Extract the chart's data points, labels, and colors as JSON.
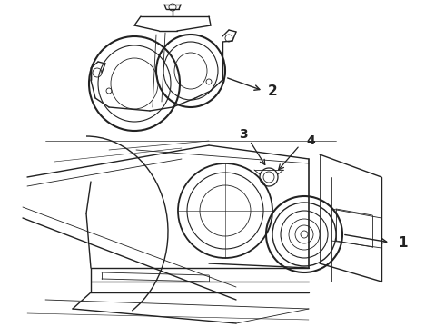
{
  "bg_color": "#ffffff",
  "line_color": "#222222",
  "lw_main": 1.0,
  "lw_thin": 0.6,
  "figsize": [
    4.9,
    3.6
  ],
  "dpi": 100,
  "xlim": [
    0,
    490
  ],
  "ylim": [
    0,
    360
  ]
}
